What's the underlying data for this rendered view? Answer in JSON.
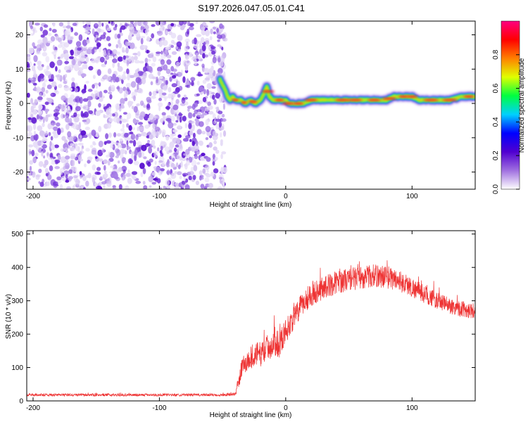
{
  "title": "S197.2026.047.05.01.C41",
  "chart_data": [
    {
      "type": "heatmap",
      "name": "spectrogram",
      "xlabel": "Height of straight line (km)",
      "ylabel": "Frequency (Hz)",
      "xlim": [
        -205,
        150
      ],
      "ylim": [
        -25,
        24
      ],
      "xticks": [
        -200,
        -100,
        0,
        100
      ],
      "yticks": [
        -20,
        -10,
        0,
        10,
        20
      ],
      "xtick_labels": [
        "-200",
        "-100",
        "0",
        "100"
      ],
      "ytick_labels": [
        "-20",
        "-10",
        "0",
        "10",
        "20"
      ],
      "noise_region_x": [
        -205,
        -50
      ],
      "signal_ridge": {
        "x": [
          -52,
          -48,
          -46,
          -44,
          -42,
          -40,
          -36,
          -32,
          -28,
          -24,
          -20,
          -17,
          -15,
          -13,
          -10,
          -6,
          -2,
          0,
          2,
          6,
          10,
          14,
          20,
          30,
          40,
          50,
          60,
          70,
          80,
          85,
          90,
          95,
          100,
          105,
          110,
          120,
          130,
          140,
          150
        ],
        "y": [
          7,
          4,
          2,
          1,
          2,
          1,
          1,
          0,
          1,
          0,
          1,
          3,
          5,
          2,
          1,
          1,
          1,
          1,
          0,
          0,
          0,
          0,
          1,
          1,
          1,
          1,
          1,
          1,
          1,
          2,
          2,
          2,
          2,
          1,
          1,
          1,
          1,
          2,
          2
        ]
      },
      "colorbar": {
        "label": "Normalized spectral amplitude",
        "range": [
          0,
          1
        ],
        "ticks": [
          0.0,
          0.2,
          0.4,
          0.6,
          0.8
        ],
        "tick_labels": [
          "0.0",
          "0.2",
          "0.4",
          "0.6",
          "0.8"
        ],
        "colors": [
          "#ffffff",
          "#a070e0",
          "#5000d0",
          "#0000ff",
          "#00d0ff",
          "#00ff40",
          "#e0ff00",
          "#ff8000",
          "#ff0000",
          "#ff0080"
        ]
      }
    },
    {
      "type": "line",
      "name": "snr",
      "xlabel": "Height of straight line (km)",
      "ylabel": "SNR (10 * v/v)",
      "xlim": [
        -205,
        150
      ],
      "ylim": [
        0,
        510
      ],
      "xticks": [
        -200,
        -100,
        0,
        100
      ],
      "yticks": [
        0,
        100,
        200,
        300,
        400,
        500
      ],
      "xtick_labels": [
        "-200",
        "-100",
        "0",
        "100"
      ],
      "ytick_labels": [
        "0",
        "100",
        "200",
        "300",
        "400",
        "500"
      ],
      "line_color": "#ee3333",
      "envelope": {
        "x": [
          -205,
          -150,
          -100,
          -50,
          -40,
          -38,
          -35,
          -30,
          -25,
          -20,
          -15,
          -10,
          -8,
          -5,
          0,
          5,
          10,
          15,
          20,
          30,
          40,
          50,
          60,
          70,
          80,
          90,
          100,
          110,
          120,
          130,
          140,
          150
        ],
        "base": [
          18,
          18,
          18,
          18,
          20,
          40,
          100,
          120,
          140,
          140,
          160,
          170,
          180,
          170,
          210,
          240,
          270,
          300,
          320,
          340,
          355,
          365,
          370,
          375,
          372,
          360,
          340,
          320,
          300,
          285,
          275,
          270
        ],
        "spread": [
          8,
          8,
          8,
          8,
          10,
          40,
          60,
          70,
          75,
          75,
          75,
          85,
          95,
          80,
          75,
          70,
          70,
          75,
          75,
          70,
          70,
          70,
          70,
          70,
          70,
          65,
          60,
          55,
          50,
          50,
          50,
          50
        ]
      }
    }
  ]
}
